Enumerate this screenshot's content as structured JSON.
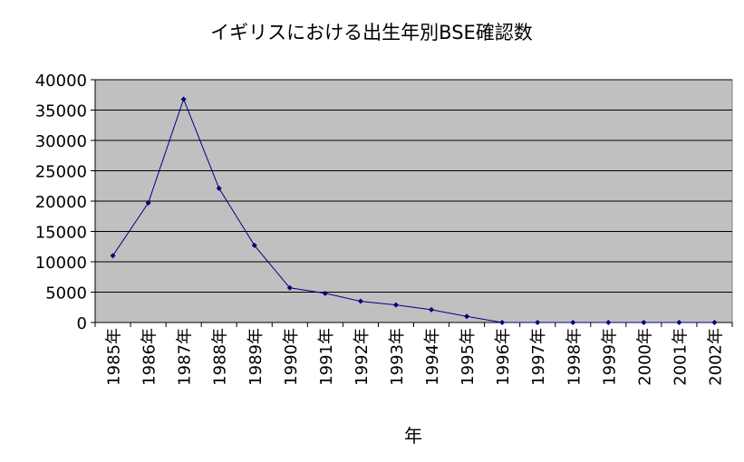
{
  "chart_data": {
    "type": "line",
    "title": "イギリスにおける出生年別BSE確認数",
    "xlabel": "年",
    "ylabel": "",
    "categories": [
      "1985年",
      "1986年",
      "1987年",
      "1988年",
      "1989年",
      "1990年",
      "1991年",
      "1992年",
      "1993年",
      "1994年",
      "1995年",
      "1996年",
      "1997年",
      "1998年",
      "1999年",
      "2000年",
      "2001年",
      "2002年"
    ],
    "series": [
      {
        "values": [
          11000,
          19700,
          36800,
          22100,
          12700,
          5700,
          4800,
          3500,
          2900,
          2100,
          1000,
          0,
          0,
          0,
          0,
          0,
          0,
          0
        ]
      }
    ],
    "ylim": [
      0,
      40000
    ],
    "yticks": [
      0,
      5000,
      10000,
      15000,
      20000,
      25000,
      30000,
      35000,
      40000
    ],
    "yticklabels": [
      "0",
      "5000",
      "10000",
      "15000",
      "20000",
      "25000",
      "30000",
      "35000",
      "40000"
    ],
    "grid": true,
    "legend": "none",
    "colors": {
      "plot_background": "#c0c0c0",
      "line": "#000080",
      "gridline": "#000000"
    }
  }
}
